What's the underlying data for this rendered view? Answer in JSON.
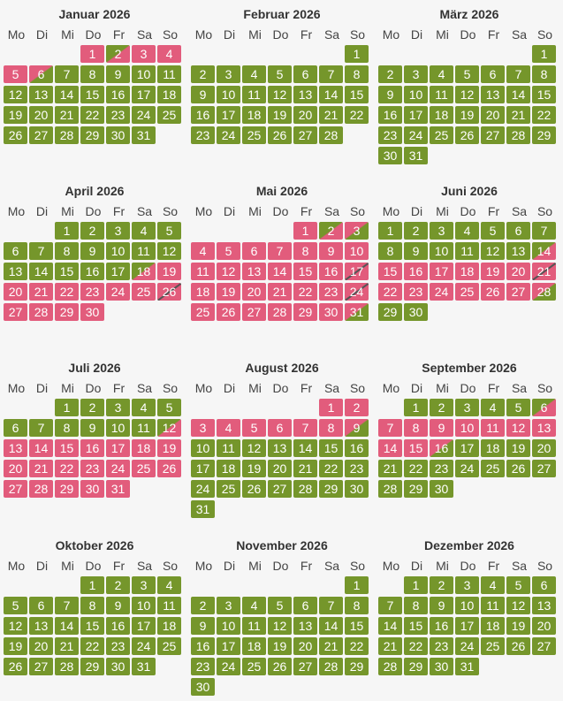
{
  "weekdays": [
    "Mo",
    "Di",
    "Mi",
    "Do",
    "Fr",
    "Sa",
    "So"
  ],
  "months": [
    {
      "title": "Januar 2026",
      "start": 3,
      "days": 31,
      "booked": [
        1,
        2,
        3,
        4,
        5,
        6
      ],
      "arrivals": [
        2
      ],
      "departures": [
        6
      ],
      "changeovers": []
    },
    {
      "title": "Februar 2026",
      "start": 6,
      "days": 28,
      "booked": [],
      "arrivals": [],
      "departures": [],
      "changeovers": []
    },
    {
      "title": "März 2026",
      "start": 6,
      "days": 31,
      "booked": [],
      "arrivals": [],
      "departures": [],
      "changeovers": []
    },
    {
      "title": "April 2026",
      "start": 2,
      "days": 30,
      "booked": [
        18,
        19,
        20,
        21,
        22,
        23,
        24,
        25,
        26,
        27,
        28,
        29,
        30
      ],
      "arrivals": [
        18
      ],
      "departures": [],
      "changeovers": [
        26
      ]
    },
    {
      "title": "Mai 2026",
      "start": 4,
      "days": 31,
      "booked": [
        1,
        2,
        3,
        4,
        5,
        6,
        7,
        8,
        9,
        10,
        11,
        12,
        13,
        14,
        15,
        16,
        17,
        18,
        19,
        20,
        21,
        22,
        23,
        24,
        25,
        26,
        27,
        28,
        29,
        30,
        31
      ],
      "arrivals": [
        2
      ],
      "departures": [
        3,
        31
      ],
      "changeovers": [
        17,
        24
      ]
    },
    {
      "title": "Juni 2026",
      "start": 0,
      "days": 30,
      "booked": [
        14,
        15,
        16,
        17,
        18,
        19,
        20,
        21,
        22,
        23,
        24,
        25,
        26,
        27,
        28
      ],
      "arrivals": [
        14
      ],
      "departures": [
        28
      ],
      "changeovers": [
        21
      ]
    },
    {
      "title": "Juli 2026",
      "start": 2,
      "days": 31,
      "booked": [
        12,
        13,
        14,
        15,
        16,
        17,
        18,
        19,
        20,
        21,
        22,
        23,
        24,
        25,
        26,
        27,
        28,
        29,
        30,
        31
      ],
      "arrivals": [
        12
      ],
      "departures": [],
      "changeovers": []
    },
    {
      "title": "August 2026",
      "start": 5,
      "days": 31,
      "booked": [
        1,
        2,
        3,
        4,
        5,
        6,
        7,
        8,
        9
      ],
      "arrivals": [],
      "departures": [
        9
      ],
      "changeovers": []
    },
    {
      "title": "September 2026",
      "start": 1,
      "days": 30,
      "booked": [
        6,
        7,
        8,
        9,
        10,
        11,
        12,
        13,
        14,
        15,
        16
      ],
      "arrivals": [
        6
      ],
      "departures": [
        16
      ],
      "changeovers": []
    },
    {
      "title": "Oktober 2026",
      "start": 3,
      "days": 31,
      "booked": [],
      "arrivals": [],
      "departures": [],
      "changeovers": []
    },
    {
      "title": "November 2026",
      "start": 6,
      "days": 30,
      "booked": [],
      "arrivals": [],
      "departures": [],
      "changeovers": []
    },
    {
      "title": "Dezember 2026",
      "start": 1,
      "days": 31,
      "booked": [],
      "arrivals": [],
      "departures": [],
      "changeovers": []
    }
  ],
  "colors": {
    "free": "#75962b",
    "booked": "#e25c7c"
  }
}
